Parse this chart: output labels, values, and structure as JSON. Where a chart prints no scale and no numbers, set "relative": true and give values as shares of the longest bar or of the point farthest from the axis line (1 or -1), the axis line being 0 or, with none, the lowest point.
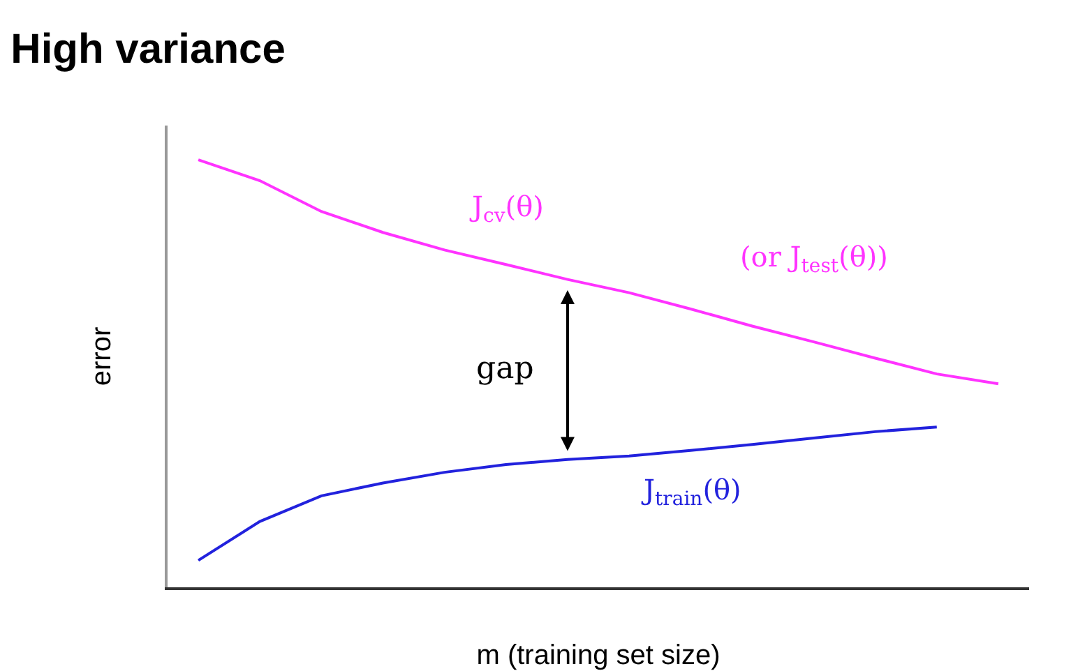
{
  "chart_data": {
    "type": "line",
    "title": "High variance",
    "xlabel": "m (training set size)",
    "ylabel": "error",
    "relative": true,
    "legend": false,
    "grid": false,
    "categories": [
      null,
      null,
      null,
      null,
      null,
      null,
      null,
      null,
      null,
      null,
      null,
      null,
      null,
      null
    ],
    "series": [
      {
        "name": "J$_{cv}$(θ)",
        "color": "#ff33ff",
        "values": [
          1.0,
          0.951,
          0.879,
          0.83,
          0.789,
          0.755,
          0.72,
          0.689,
          0.651,
          0.611,
          0.574,
          0.536,
          0.499,
          0.476
        ]
      },
      {
        "name": "J$_{train}$(θ)",
        "color": "#2222dd",
        "values": [
          0.063,
          0.154,
          0.214,
          0.244,
          0.269,
          0.287,
          0.299,
          0.307,
          0.32,
          0.334,
          0.349,
          0.364,
          0.375,
          null
        ]
      }
    ],
    "annotations": [
      "(or J$_{test}$(θ))",
      "gap"
    ]
  }
}
